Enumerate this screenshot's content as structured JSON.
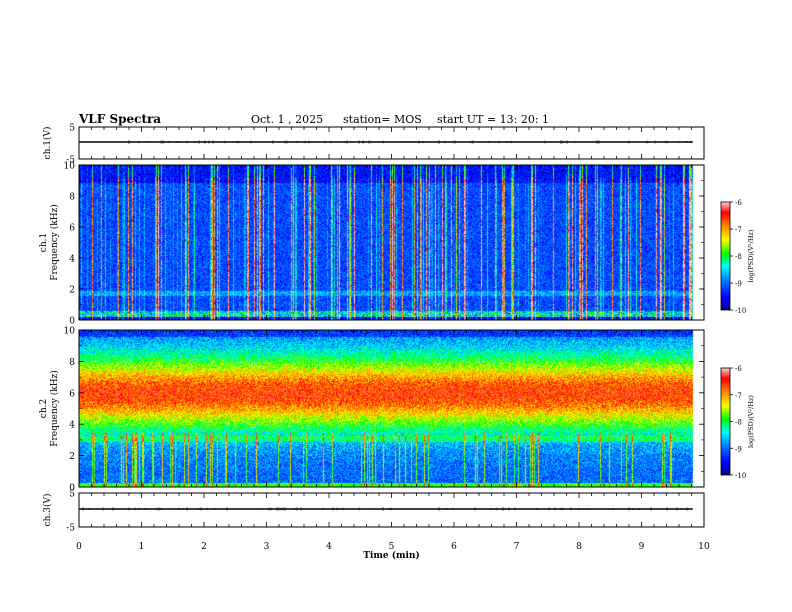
{
  "header": {
    "title": "VLF Spectra",
    "date": "Oct. 1 , 2025",
    "station": "station= MOS",
    "start": "start  UT  =   13: 20: 1"
  },
  "chart_data": {
    "type": "heatmap",
    "x": {
      "label": "Time  (min)",
      "range": [
        0,
        10
      ],
      "ticks": [
        "0",
        "1",
        "2",
        "3",
        "4",
        "5",
        "6",
        "7",
        "8",
        "9",
        "10"
      ]
    },
    "panels": [
      {
        "id": "ch1-waveform",
        "ylabel": "ch.1(V)",
        "yrange": [
          -5,
          5
        ],
        "ticks": [
          "5",
          "-5"
        ],
        "kind": "waveform",
        "data_end_min": 9.82
      },
      {
        "id": "ch1-spectrogram",
        "ylabel_line1": "ch.1",
        "ylabel_line2": "Frequency (kHz)",
        "yrange": [
          0,
          10
        ],
        "ticks": [
          "0",
          "2",
          "4",
          "6",
          "8",
          "10"
        ],
        "kind": "spectrogram",
        "data_end_min": 9.82,
        "description_profile": {
          "background_log_psd": -9.6,
          "vertical_bursts": "frequent broadband spherics"
        },
        "colorbar": {
          "label": "log(PSD)(V²/Hz)",
          "range": [
            -10,
            -6
          ],
          "ticks": [
            "-6",
            "-7",
            "-8",
            "-9",
            "-10"
          ]
        }
      },
      {
        "id": "ch2-spectrogram",
        "ylabel_line1": "ch.2",
        "ylabel_line2": "Frequency (kHz)",
        "yrange": [
          0,
          10
        ],
        "ticks": [
          "0",
          "2",
          "4",
          "6",
          "8",
          "10"
        ],
        "kind": "spectrogram",
        "data_end_min": 9.82,
        "description_profile": {
          "band_center_khz": 6,
          "band_peak_log_psd": -6.9
        },
        "colorbar": {
          "label": "log(PSD)(V²/Hz)",
          "range": [
            -10,
            -6
          ],
          "ticks": [
            "-6",
            "-7",
            "-8",
            "-9",
            "-10"
          ]
        }
      },
      {
        "id": "ch3-waveform",
        "ylabel": "ch.3(V)",
        "yrange": [
          -5,
          5
        ],
        "ticks": [
          "5",
          "-5"
        ],
        "kind": "waveform",
        "data_end_min": 9.82
      }
    ],
    "colormap": [
      "#000080",
      "#0000ff",
      "#0080ff",
      "#00ffff",
      "#00ff80",
      "#00ff00",
      "#80ff00",
      "#ffff00",
      "#ff8000",
      "#ff0000",
      "#ffc0c0"
    ]
  }
}
